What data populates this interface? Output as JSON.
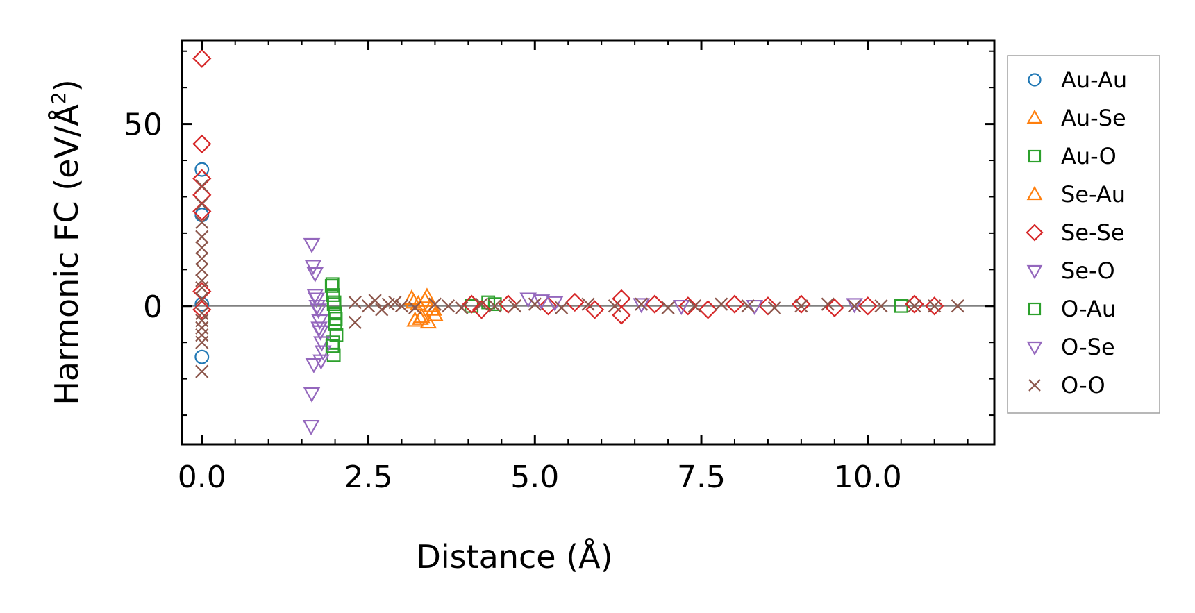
{
  "chart_data": {
    "type": "scatter",
    "title": "",
    "xlabel": "Distance (Å)",
    "ylabel_main": "Harmonic FC (eV/Å",
    "ylabel_sup": "2",
    "ylabel_close": ")",
    "xlim": [
      -0.3,
      11.9
    ],
    "ylim": [
      -38,
      73
    ],
    "xticks": [
      0.0,
      2.5,
      5.0,
      7.5,
      10.0
    ],
    "xtick_labels": [
      "0.0",
      "2.5",
      "5.0",
      "7.5",
      "10.0"
    ],
    "yticks": [
      0,
      50
    ],
    "ytick_labels": [
      "0",
      "50"
    ],
    "zero_line": 0,
    "legend_position": "outside-right",
    "series": [
      {
        "name": "Au-Au",
        "marker": "circle",
        "color": "#1f77b4",
        "points": [
          [
            0.0,
            37.5
          ],
          [
            0.0,
            25.0
          ],
          [
            0.0,
            0.5
          ],
          [
            0.0,
            -14.0
          ]
        ]
      },
      {
        "name": "Au-Se",
        "marker": "triangle-up",
        "color": "#ff7f0e",
        "points": [
          [
            3.15,
            2.0
          ],
          [
            3.2,
            -4.0
          ],
          [
            3.25,
            0.5
          ],
          [
            3.3,
            -3.0
          ],
          [
            3.35,
            1.5
          ],
          [
            3.4,
            -4.5
          ],
          [
            3.45,
            0.0
          ],
          [
            3.5,
            -2.5
          ]
        ]
      },
      {
        "name": "Au-O",
        "marker": "square",
        "color": "#2ca02c",
        "points": [
          [
            1.95,
            5.5
          ],
          [
            1.97,
            3.0
          ],
          [
            1.98,
            0.5
          ],
          [
            2.0,
            -2.0
          ],
          [
            2.0,
            -5.0
          ],
          [
            2.02,
            -8.0
          ],
          [
            1.97,
            -10.0
          ],
          [
            1.98,
            -13.5
          ],
          [
            4.3,
            1.0
          ],
          [
            4.4,
            0.5
          ],
          [
            4.05,
            0.0
          ],
          [
            10.5,
            0.0
          ]
        ]
      },
      {
        "name": "Se-Au",
        "marker": "triangle-up",
        "color": "#ff7f0e",
        "points": [
          [
            3.18,
            1.0
          ],
          [
            3.28,
            -3.5
          ],
          [
            3.38,
            2.5
          ],
          [
            3.48,
            -1.0
          ]
        ]
      },
      {
        "name": "Se-Se",
        "marker": "diamond",
        "color": "#d62728",
        "points": [
          [
            0.0,
            68.0
          ],
          [
            0.0,
            44.5
          ],
          [
            0.0,
            35.0
          ],
          [
            0.0,
            30.5
          ],
          [
            0.0,
            26.0
          ],
          [
            0.0,
            4.0
          ],
          [
            0.0,
            -1.0
          ],
          [
            4.05,
            0.5
          ],
          [
            4.2,
            -1.0
          ],
          [
            4.6,
            0.5
          ],
          [
            5.2,
            0.0
          ],
          [
            5.6,
            1.0
          ],
          [
            5.9,
            -1.0
          ],
          [
            6.3,
            2.0
          ],
          [
            6.3,
            -2.5
          ],
          [
            6.8,
            0.5
          ],
          [
            7.3,
            0.0
          ],
          [
            7.6,
            -1.0
          ],
          [
            8.0,
            0.5
          ],
          [
            8.5,
            0.0
          ],
          [
            9.0,
            0.5
          ],
          [
            9.5,
            -0.5
          ],
          [
            10.0,
            0.0
          ],
          [
            10.7,
            0.5
          ],
          [
            11.0,
            0.0
          ]
        ]
      },
      {
        "name": "Se-O",
        "marker": "triangle-down",
        "color": "#9467bd",
        "points": [
          [
            1.65,
            17.0
          ],
          [
            1.67,
            11.0
          ],
          [
            1.7,
            9.0
          ],
          [
            1.72,
            2.0
          ],
          [
            1.75,
            -1.0
          ],
          [
            1.77,
            -4.0
          ],
          [
            1.78,
            -7.0
          ],
          [
            1.8,
            -10.0
          ],
          [
            1.82,
            -12.5
          ],
          [
            1.68,
            -16.0
          ],
          [
            1.65,
            -24.0
          ],
          [
            1.64,
            -33.0
          ]
        ]
      },
      {
        "name": "O-Au",
        "marker": "square",
        "color": "#2ca02c",
        "points": [
          [
            1.96,
            6.0
          ],
          [
            1.99,
            1.0
          ],
          [
            2.01,
            -3.5
          ],
          [
            1.96,
            -11.0
          ]
        ]
      },
      {
        "name": "O-Se",
        "marker": "triangle-down",
        "color": "#9467bd",
        "points": [
          [
            1.7,
            3.0
          ],
          [
            1.73,
            0.0
          ],
          [
            1.76,
            -6.0
          ],
          [
            1.79,
            -15.0
          ],
          [
            4.9,
            2.0
          ],
          [
            5.1,
            1.5
          ],
          [
            5.3,
            1.0
          ],
          [
            6.6,
            0.5
          ],
          [
            7.2,
            0.0
          ],
          [
            8.3,
            0.0
          ],
          [
            9.8,
            0.5
          ]
        ]
      },
      {
        "name": "O-O",
        "marker": "x",
        "color": "#8c564b",
        "points": [
          [
            0.0,
            33.0
          ],
          [
            0.0,
            28.0
          ],
          [
            0.0,
            23.0
          ],
          [
            0.0,
            19.0
          ],
          [
            0.0,
            16.0
          ],
          [
            0.0,
            13.0
          ],
          [
            0.0,
            10.0
          ],
          [
            0.0,
            7.0
          ],
          [
            0.0,
            5.0
          ],
          [
            0.0,
            2.0
          ],
          [
            0.0,
            -2.0
          ],
          [
            0.0,
            -4.0
          ],
          [
            0.0,
            -6.0
          ],
          [
            0.0,
            -8.0
          ],
          [
            0.0,
            -10.0
          ],
          [
            0.0,
            -18.0
          ],
          [
            2.3,
            1.0
          ],
          [
            2.3,
            -4.5
          ],
          [
            2.5,
            0.0
          ],
          [
            2.6,
            1.5
          ],
          [
            2.7,
            -1.0
          ],
          [
            2.8,
            0.5
          ],
          [
            2.9,
            1.0
          ],
          [
            3.0,
            0.0
          ],
          [
            3.2,
            -0.5
          ],
          [
            3.5,
            0.5
          ],
          [
            3.7,
            0.0
          ],
          [
            3.9,
            -0.5
          ],
          [
            4.2,
            0.5
          ],
          [
            4.4,
            0.0
          ],
          [
            4.7,
            0.0
          ],
          [
            5.0,
            0.5
          ],
          [
            5.4,
            -0.5
          ],
          [
            5.8,
            0.5
          ],
          [
            6.2,
            0.0
          ],
          [
            6.6,
            0.5
          ],
          [
            7.0,
            -0.5
          ],
          [
            7.4,
            0.0
          ],
          [
            7.8,
            0.5
          ],
          [
            8.2,
            0.0
          ],
          [
            8.6,
            -0.5
          ],
          [
            9.0,
            0.0
          ],
          [
            9.4,
            0.5
          ],
          [
            9.8,
            0.0
          ],
          [
            10.2,
            0.0
          ],
          [
            10.7,
            0.0
          ],
          [
            11.0,
            0.0
          ],
          [
            11.35,
            0.0
          ]
        ]
      }
    ]
  }
}
